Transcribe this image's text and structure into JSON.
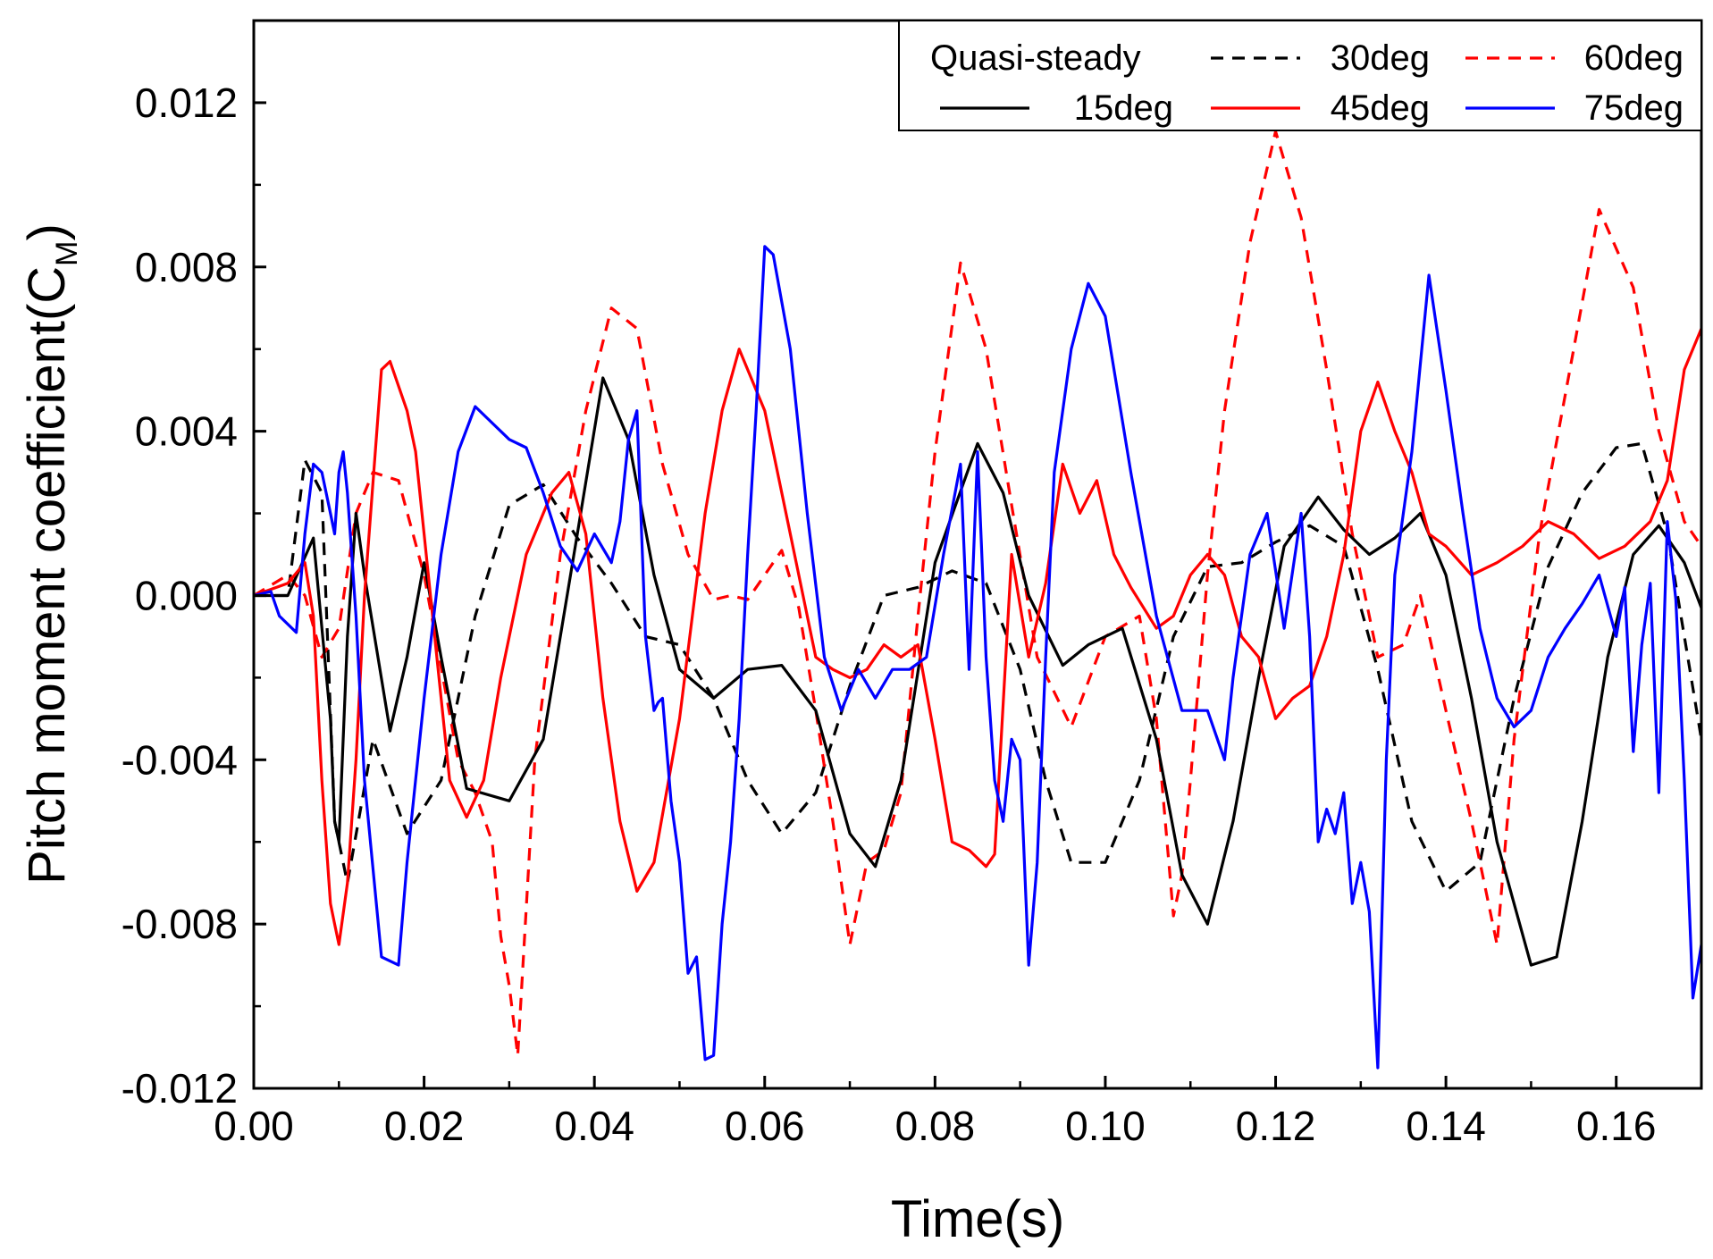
{
  "chart_data": {
    "type": "line",
    "title": "",
    "xlabel": "Time(s)",
    "ylabel": "Pitch moment coefficient(C",
    "ylabel_subscript": "M",
    "ylabel_close": ")",
    "xlim": [
      0,
      0.17
    ],
    "ylim": [
      -0.012,
      0.014
    ],
    "xticks": [
      0.0,
      0.02,
      0.04,
      0.06,
      0.08,
      0.1,
      0.12,
      0.14,
      0.16
    ],
    "xtick_labels": [
      "0.00",
      "0.02",
      "0.04",
      "0.06",
      "0.08",
      "0.10",
      "0.12",
      "0.14",
      "0.16"
    ],
    "yticks": [
      -0.012,
      -0.008,
      -0.004,
      0.0,
      0.004,
      0.008,
      0.012
    ],
    "ytick_labels": [
      "-0.012",
      "-0.008",
      "-0.004",
      "0.000",
      "0.004",
      "0.008",
      "0.012"
    ],
    "legend_title": "Quasi-steady",
    "legend_position": "top-right",
    "series": [
      {
        "name": "30deg",
        "color": "#000000",
        "dash": "dashed",
        "x": [
          0,
          0.004,
          0.006,
          0.008,
          0.0095,
          0.011,
          0.014,
          0.018,
          0.022,
          0.026,
          0.03,
          0.034,
          0.038,
          0.042,
          0.046,
          0.05,
          0.054,
          0.058,
          0.062,
          0.066,
          0.07,
          0.074,
          0.078,
          0.082,
          0.086,
          0.09,
          0.093,
          0.096,
          0.1,
          0.104,
          0.108,
          0.112,
          0.116,
          0.12,
          0.124,
          0.128,
          0.132,
          0.136,
          0.14,
          0.144,
          0.148,
          0.152,
          0.156,
          0.16,
          0.163,
          0.166,
          0.17
        ],
        "y": [
          0,
          0,
          0.0033,
          0.0025,
          -0.0055,
          -0.007,
          -0.0035,
          -0.0058,
          -0.0045,
          -0.0005,
          0.0022,
          0.0027,
          0.0014,
          0.0003,
          -0.001,
          -0.0012,
          -0.0025,
          -0.0045,
          -0.0058,
          -0.0048,
          -0.0022,
          0,
          0.0002,
          0.0006,
          0.0003,
          -0.0018,
          -0.0045,
          -0.0065,
          -0.0065,
          -0.0045,
          -0.001,
          0.0007,
          0.0008,
          0.0013,
          0.0017,
          0.0012,
          -0.0018,
          -0.0055,
          -0.0072,
          -0.0065,
          -0.0025,
          0.0007,
          0.0025,
          0.0036,
          0.0037,
          0.0015,
          -0.0035
        ]
      },
      {
        "name": "60deg",
        "color": "#ff0000",
        "dash": "dashed",
        "x": [
          0,
          0.004,
          0.006,
          0.008,
          0.01,
          0.012,
          0.014,
          0.017,
          0.02,
          0.024,
          0.026,
          0.028,
          0.029,
          0.03,
          0.031,
          0.033,
          0.036,
          0.039,
          0.042,
          0.045,
          0.048,
          0.051,
          0.054,
          0.056,
          0.058,
          0.06,
          0.062,
          0.064,
          0.066,
          0.068,
          0.07,
          0.072,
          0.074,
          0.076,
          0.078,
          0.08,
          0.083,
          0.086,
          0.089,
          0.092,
          0.096,
          0.1,
          0.104,
          0.106,
          0.108,
          0.109,
          0.11,
          0.112,
          0.114,
          0.117,
          0.12,
          0.123,
          0.126,
          0.129,
          0.132,
          0.135,
          0.137,
          0.14,
          0.143,
          0.145,
          0.146,
          0.148,
          0.151,
          0.155,
          0.158,
          0.162,
          0.165,
          0.168,
          0.17
        ],
        "y": [
          0,
          0.0005,
          0,
          -0.0015,
          -0.0008,
          0.002,
          0.003,
          0.0028,
          0.0005,
          -0.004,
          -0.0048,
          -0.006,
          -0.0083,
          -0.0095,
          -0.0112,
          -0.004,
          0.001,
          0.0045,
          0.007,
          0.0065,
          0.0032,
          0.001,
          -0.0001,
          0,
          -0.0001,
          0.0005,
          0.0011,
          -0.0003,
          -0.0028,
          -0.0055,
          -0.0085,
          -0.0065,
          -0.0062,
          -0.0048,
          -0.0005,
          0.0035,
          0.0081,
          0.006,
          0.0022,
          -0.0015,
          -0.0032,
          -0.001,
          -0.0005,
          -0.003,
          -0.0078,
          -0.0068,
          -0.0045,
          0.0005,
          0.0045,
          0.0086,
          0.0113,
          0.0092,
          0.0055,
          0.0015,
          -0.0015,
          -0.0012,
          0,
          -0.0028,
          -0.0055,
          -0.0075,
          -0.0085,
          -0.0035,
          0.0015,
          0.006,
          0.0094,
          0.0075,
          0.004,
          0.0018,
          0.0012
        ]
      },
      {
        "name": "15deg",
        "color": "#000000",
        "dash": "solid",
        "x": [
          0,
          0.004,
          0.007,
          0.009,
          0.0095,
          0.01,
          0.011,
          0.012,
          0.013,
          0.016,
          0.018,
          0.02,
          0.022,
          0.025,
          0.03,
          0.034,
          0.038,
          0.041,
          0.044,
          0.047,
          0.05,
          0.054,
          0.058,
          0.062,
          0.066,
          0.07,
          0.073,
          0.076,
          0.08,
          0.085,
          0.088,
          0.091,
          0.095,
          0.098,
          0.102,
          0.106,
          0.109,
          0.112,
          0.115,
          0.118,
          0.121,
          0.125,
          0.128,
          0.131,
          0.134,
          0.137,
          0.14,
          0.143,
          0.146,
          0.15,
          0.153,
          0.156,
          0.159,
          0.162,
          0.165,
          0.168,
          0.17
        ],
        "y": [
          0,
          0,
          0.0014,
          -0.003,
          -0.0055,
          -0.006,
          -0.001,
          0.002,
          0.0005,
          -0.0033,
          -0.0015,
          0.0008,
          -0.0015,
          -0.0047,
          -0.005,
          -0.0035,
          0.0015,
          0.0053,
          0.0038,
          0.0005,
          -0.0018,
          -0.0025,
          -0.0018,
          -0.0017,
          -0.0028,
          -0.0058,
          -0.0066,
          -0.0045,
          0.0008,
          0.0037,
          0.0025,
          0,
          -0.0017,
          -0.0012,
          -0.0008,
          -0.0035,
          -0.0068,
          -0.008,
          -0.0055,
          -0.002,
          0.0012,
          0.0024,
          0.0016,
          0.001,
          0.0014,
          0.002,
          0.0005,
          -0.0025,
          -0.006,
          -0.009,
          -0.0088,
          -0.0055,
          -0.0015,
          0.001,
          0.0017,
          0.0008,
          -0.0003
        ]
      },
      {
        "name": "45deg",
        "color": "#ff0000",
        "dash": "solid",
        "x": [
          0,
          0.004,
          0.006,
          0.007,
          0.008,
          0.009,
          0.0095,
          0.01,
          0.011,
          0.012,
          0.013,
          0.015,
          0.016,
          0.018,
          0.019,
          0.021,
          0.023,
          0.025,
          0.027,
          0.029,
          0.032,
          0.035,
          0.037,
          0.039,
          0.041,
          0.043,
          0.045,
          0.047,
          0.05,
          0.053,
          0.055,
          0.057,
          0.06,
          0.063,
          0.066,
          0.068,
          0.07,
          0.072,
          0.074,
          0.076,
          0.078,
          0.08,
          0.082,
          0.084,
          0.086,
          0.087,
          0.089,
          0.091,
          0.093,
          0.095,
          0.097,
          0.099,
          0.101,
          0.103,
          0.106,
          0.108,
          0.11,
          0.112,
          0.114,
          0.116,
          0.118,
          0.12,
          0.122,
          0.124,
          0.126,
          0.128,
          0.13,
          0.132,
          0.134,
          0.136,
          0.138,
          0.14,
          0.143,
          0.146,
          0.149,
          0.152,
          0.155,
          0.158,
          0.161,
          0.164,
          0.166,
          0.168,
          0.17
        ],
        "y": [
          0,
          0.0003,
          0.0008,
          -0.0005,
          -0.0045,
          -0.0075,
          -0.008,
          -0.0085,
          -0.007,
          -0.004,
          0,
          0.0055,
          0.0057,
          0.0045,
          0.0035,
          -0.0005,
          -0.0045,
          -0.0054,
          -0.0045,
          -0.002,
          0.001,
          0.0025,
          0.003,
          0.0015,
          -0.0025,
          -0.0055,
          -0.0072,
          -0.0065,
          -0.003,
          0.002,
          0.0045,
          0.006,
          0.0045,
          0.0015,
          -0.0015,
          -0.0018,
          -0.002,
          -0.0018,
          -0.0012,
          -0.0015,
          -0.0012,
          -0.0035,
          -0.006,
          -0.0062,
          -0.0066,
          -0.0063,
          0.001,
          -0.0015,
          0.0003,
          0.0032,
          0.002,
          0.0028,
          0.001,
          0.0002,
          -0.0008,
          -0.0005,
          0.0005,
          0.001,
          0.0005,
          -0.001,
          -0.0015,
          -0.003,
          -0.0025,
          -0.0022,
          -0.001,
          0.001,
          0.004,
          0.0052,
          0.004,
          0.003,
          0.0015,
          0.0012,
          0.0005,
          0.0008,
          0.0012,
          0.0018,
          0.0015,
          0.0009,
          0.0012,
          0.0018,
          0.0028,
          0.0055,
          0.0065
        ]
      },
      {
        "name": "75deg",
        "color": "#0000ff",
        "dash": "solid",
        "x": [
          0,
          0.002,
          0.003,
          0.005,
          0.006,
          0.007,
          0.008,
          0.009,
          0.0095,
          0.01,
          0.0105,
          0.011,
          0.012,
          0.013,
          0.015,
          0.017,
          0.018,
          0.02,
          0.022,
          0.024,
          0.026,
          0.028,
          0.03,
          0.032,
          0.034,
          0.036,
          0.038,
          0.04,
          0.042,
          0.043,
          0.044,
          0.045,
          0.046,
          0.047,
          0.0475,
          0.048,
          0.049,
          0.05,
          0.051,
          0.052,
          0.053,
          0.054,
          0.055,
          0.056,
          0.057,
          0.058,
          0.059,
          0.06,
          0.061,
          0.063,
          0.065,
          0.067,
          0.069,
          0.071,
          0.073,
          0.075,
          0.077,
          0.079,
          0.081,
          0.083,
          0.084,
          0.085,
          0.086,
          0.087,
          0.088,
          0.089,
          0.09,
          0.091,
          0.092,
          0.093,
          0.094,
          0.096,
          0.098,
          0.1,
          0.103,
          0.106,
          0.109,
          0.112,
          0.114,
          0.115,
          0.116,
          0.117,
          0.119,
          0.121,
          0.123,
          0.124,
          0.125,
          0.126,
          0.127,
          0.128,
          0.129,
          0.13,
          0.131,
          0.132,
          0.133,
          0.134,
          0.136,
          0.138,
          0.14,
          0.142,
          0.144,
          0.146,
          0.148,
          0.15,
          0.152,
          0.154,
          0.156,
          0.158,
          0.16,
          0.161,
          0.162,
          0.163,
          0.164,
          0.165,
          0.166,
          0.167,
          0.168,
          0.169,
          0.17
        ],
        "y": [
          0,
          0.0001,
          -0.0005,
          -0.0009,
          0.0015,
          0.0032,
          0.003,
          0.002,
          0.0015,
          0.003,
          0.0035,
          0.0025,
          -0.0005,
          -0.0045,
          -0.0088,
          -0.009,
          -0.0065,
          -0.0025,
          0.001,
          0.0035,
          0.0046,
          0.0042,
          0.0038,
          0.0036,
          0.0025,
          0.0012,
          0.0006,
          0.0015,
          0.0008,
          0.0018,
          0.0038,
          0.0045,
          -0.001,
          -0.0028,
          -0.0026,
          -0.0025,
          -0.005,
          -0.0065,
          -0.0092,
          -0.0088,
          -0.0113,
          -0.0112,
          -0.008,
          -0.006,
          -0.003,
          0.001,
          0.0045,
          0.0085,
          0.0083,
          0.006,
          0.002,
          -0.0015,
          -0.0028,
          -0.0018,
          -0.0025,
          -0.0018,
          -0.0018,
          -0.0015,
          0.001,
          0.0032,
          -0.0018,
          0.0035,
          -0.0015,
          -0.0045,
          -0.0055,
          -0.0035,
          -0.004,
          -0.009,
          -0.0065,
          -0.0015,
          0.003,
          0.006,
          0.0076,
          0.0068,
          0.003,
          -0.0005,
          -0.0028,
          -0.0028,
          -0.004,
          -0.002,
          -0.0005,
          0.001,
          0.002,
          -0.0008,
          0.002,
          -0.001,
          -0.006,
          -0.0052,
          -0.0058,
          -0.0048,
          -0.0075,
          -0.0065,
          -0.0077,
          -0.0115,
          -0.004,
          0.0005,
          0.0035,
          0.0078,
          0.005,
          0.002,
          -0.0008,
          -0.0025,
          -0.0032,
          -0.0028,
          -0.0015,
          -0.0008,
          -0.0002,
          0.0005,
          -0.001,
          0.0002,
          -0.0038,
          -0.0012,
          0.0003,
          -0.0048,
          0.0018,
          -0.0001,
          -0.0045,
          -0.0098,
          -0.0085
        ]
      }
    ]
  }
}
